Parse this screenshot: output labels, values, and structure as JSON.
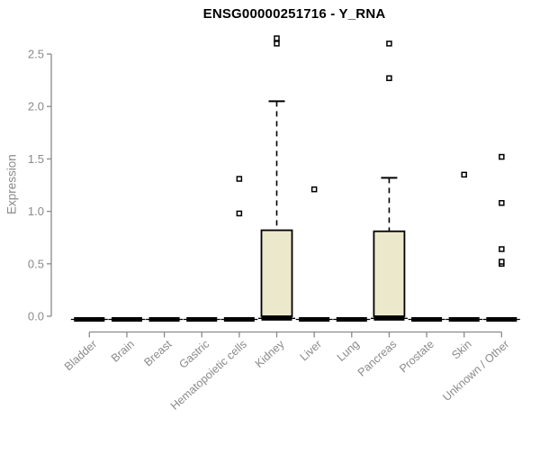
{
  "chart_data": {
    "type": "boxplot",
    "title": "ENSG00000251716 - Y_RNA",
    "ylabel": "Expression",
    "xlabel": "",
    "ylim": [
      0,
      2.7
    ],
    "grid": false,
    "legend": null,
    "y_ticks": [
      0.0,
      0.5,
      1.0,
      1.5,
      2.0,
      2.5
    ],
    "y_tick_labels": [
      "0.0",
      "0.5",
      "1.0",
      "1.5",
      "2.0",
      "2.5"
    ],
    "categories": [
      "Bladder",
      "Brain",
      "Breast",
      "Gastric",
      "Hematopoietic cells",
      "Kidney",
      "Liver",
      "Lung",
      "Pancreas",
      "Prostate",
      "Skin",
      "Unknown / Other"
    ],
    "boxes": [
      {
        "category": "Bladder",
        "whisker_low": 0,
        "q1": 0,
        "median": 0,
        "q3": 0,
        "whisker_high": 0,
        "outliers": []
      },
      {
        "category": "Brain",
        "whisker_low": 0,
        "q1": 0,
        "median": 0,
        "q3": 0,
        "whisker_high": 0,
        "outliers": []
      },
      {
        "category": "Breast",
        "whisker_low": 0,
        "q1": 0,
        "median": 0,
        "q3": 0,
        "whisker_high": 0,
        "outliers": []
      },
      {
        "category": "Gastric",
        "whisker_low": 0,
        "q1": 0,
        "median": 0,
        "q3": 0,
        "whisker_high": 0,
        "outliers": []
      },
      {
        "category": "Hematopoietic cells",
        "whisker_low": 0,
        "q1": 0,
        "median": 0,
        "q3": 0,
        "whisker_high": 0,
        "outliers": [
          0.98,
          1.31
        ]
      },
      {
        "category": "Kidney",
        "whisker_low": 0,
        "q1": 0,
        "median": 0.01,
        "q3": 0.82,
        "whisker_high": 2.05,
        "outliers": [
          2.6,
          2.65
        ]
      },
      {
        "category": "Liver",
        "whisker_low": 0,
        "q1": 0,
        "median": 0,
        "q3": 0,
        "whisker_high": 0,
        "outliers": [
          1.21
        ]
      },
      {
        "category": "Lung",
        "whisker_low": 0,
        "q1": 0,
        "median": 0,
        "q3": 0,
        "whisker_high": 0,
        "outliers": []
      },
      {
        "category": "Pancreas",
        "whisker_low": 0,
        "q1": 0,
        "median": 0.01,
        "q3": 0.81,
        "whisker_high": 1.32,
        "outliers": [
          2.27,
          2.6
        ]
      },
      {
        "category": "Prostate",
        "whisker_low": 0,
        "q1": 0,
        "median": 0,
        "q3": 0,
        "whisker_high": 0,
        "outliers": []
      },
      {
        "category": "Skin",
        "whisker_low": 0,
        "q1": 0,
        "median": 0,
        "q3": 0,
        "whisker_high": 0,
        "outliers": [
          1.35
        ]
      },
      {
        "category": "Unknown / Other",
        "whisker_low": 0,
        "q1": 0,
        "median": 0,
        "q3": 0,
        "whisker_high": 0,
        "outliers": [
          0.5,
          0.52,
          0.64,
          1.08,
          1.52
        ]
      }
    ]
  },
  "style": {
    "background": "#FFFFFF",
    "title_color": "#000000",
    "axis_color": "#8A8A8A",
    "text_color": "#8A8A8A",
    "box_fill": "#ECE8CC",
    "box_stroke": "#000000",
    "whisker_color": "#000000",
    "median_color": "#000000",
    "outlier_marker": "open-square"
  }
}
